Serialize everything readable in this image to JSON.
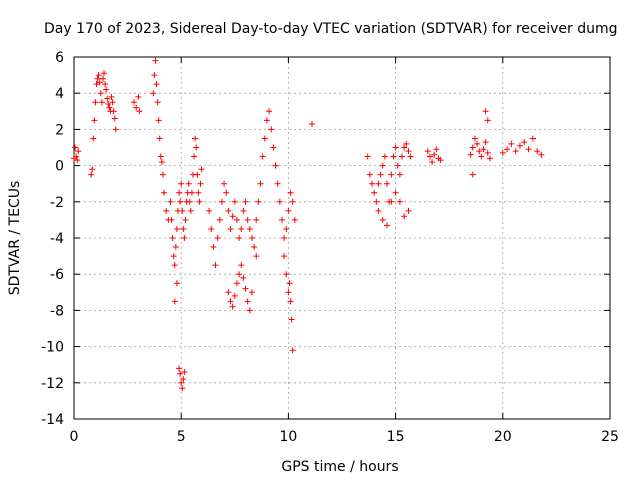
{
  "chart_data": {
    "type": "scatter",
    "title": "Day 170 of 2023, Sidereal Day-to-day VTEC variation (SDTVAR) for receiver dumg",
    "xlabel": "GPS time / hours",
    "ylabel": "SDTVAR / TECUs",
    "xlim": [
      0,
      25
    ],
    "ylim": [
      -14,
      6
    ],
    "xticks": [
      0,
      5,
      10,
      15,
      20,
      25
    ],
    "yticks": [
      -14,
      -12,
      -10,
      -8,
      -6,
      -4,
      -2,
      0,
      2,
      4,
      6
    ],
    "grid": true,
    "marker": "+",
    "color": "#ff0000",
    "series": [
      {
        "name": "SDTVAR",
        "x": [
          0.0,
          0.05,
          0.1,
          0.15,
          0.2,
          0.8,
          0.85,
          0.9,
          0.95,
          1.0,
          1.05,
          1.1,
          1.15,
          1.2,
          1.25,
          1.3,
          1.35,
          1.4,
          1.45,
          1.5,
          1.55,
          1.6,
          1.65,
          1.7,
          1.75,
          1.8,
          1.85,
          1.9,
          1.95,
          2.8,
          2.9,
          3.0,
          3.05,
          3.7,
          3.75,
          3.8,
          3.85,
          3.9,
          3.95,
          4.0,
          4.05,
          4.1,
          4.15,
          4.2,
          4.3,
          4.4,
          4.5,
          4.55,
          4.6,
          4.65,
          4.7,
          4.75,
          4.8,
          4.85,
          4.9,
          4.95,
          5.0,
          5.05,
          5.1,
          5.15,
          5.2,
          5.25,
          5.3,
          5.35,
          5.4,
          5.45,
          5.5,
          5.55,
          5.6,
          5.65,
          5.7,
          5.75,
          5.8,
          5.85,
          5.9,
          5.95,
          4.9,
          4.95,
          5.0,
          5.05,
          5.1,
          5.15,
          4.8,
          4.7,
          6.3,
          6.4,
          6.5,
          6.6,
          6.7,
          6.8,
          6.9,
          7.0,
          7.1,
          7.2,
          7.3,
          7.4,
          7.5,
          7.6,
          7.7,
          7.8,
          7.9,
          8.0,
          8.1,
          8.2,
          8.3,
          8.4,
          8.5,
          7.2,
          7.3,
          7.4,
          7.5,
          7.6,
          7.7,
          7.8,
          7.9,
          8.0,
          8.1,
          8.2,
          8.3,
          8.5,
          8.6,
          8.7,
          8.8,
          8.9,
          9.0,
          9.1,
          9.2,
          9.3,
          9.4,
          9.5,
          9.6,
          9.7,
          9.8,
          9.9,
          10.0,
          10.1,
          10.2,
          10.3,
          9.8,
          9.9,
          10.0,
          10.05,
          10.1,
          10.15,
          10.2,
          11.1,
          13.7,
          13.8,
          13.9,
          14.0,
          14.1,
          14.2,
          14.3,
          14.4,
          14.5,
          14.6,
          14.7,
          14.8,
          14.9,
          15.0,
          15.1,
          15.2,
          15.3,
          15.4,
          15.5,
          15.6,
          15.7,
          14.2,
          14.4,
          14.6,
          14.8,
          15.0,
          15.2,
          15.4,
          15.6,
          16.5,
          16.6,
          16.7,
          16.8,
          16.9,
          17.0,
          17.1,
          18.5,
          18.6,
          18.7,
          18.8,
          18.9,
          19.0,
          19.1,
          19.2,
          19.3,
          19.4,
          20.0,
          20.2,
          20.4,
          20.6,
          20.8,
          21.0,
          21.2,
          21.4,
          21.6,
          21.8,
          19.2,
          19.3,
          18.6
        ],
        "y": [
          0.4,
          1.0,
          0.5,
          0.3,
          0.8,
          -0.5,
          -0.2,
          1.5,
          2.5,
          3.5,
          4.5,
          4.8,
          5.0,
          4.6,
          4.0,
          3.5,
          4.8,
          5.1,
          4.5,
          4.2,
          3.7,
          3.4,
          3.2,
          3.0,
          3.8,
          3.5,
          3.0,
          2.6,
          2.0,
          3.5,
          3.2,
          3.8,
          3.0,
          4.0,
          5.0,
          5.8,
          4.5,
          3.5,
          2.5,
          1.5,
          0.5,
          0.2,
          -0.5,
          -1.5,
          -2.5,
          -3.0,
          -2.0,
          -3.0,
          -4.0,
          -5.0,
          -5.5,
          -4.5,
          -3.5,
          -2.5,
          -1.5,
          -2.0,
          -1.0,
          -2.5,
          -3.5,
          -4.0,
          -3.0,
          -2.0,
          -1.5,
          -1.0,
          -2.0,
          -2.5,
          -1.5,
          -0.5,
          0.5,
          1.5,
          1.0,
          -0.5,
          -1.5,
          -2.0,
          -1.0,
          -0.2,
          -11.2,
          -11.5,
          -12.0,
          -12.3,
          -11.8,
          -11.4,
          -6.5,
          -7.5,
          -2.5,
          -3.5,
          -4.5,
          -5.5,
          -4.0,
          -3.0,
          -2.0,
          -1.0,
          -1.5,
          -2.5,
          -3.5,
          -2.8,
          -2.0,
          -3.0,
          -4.0,
          -3.5,
          -2.5,
          -2.0,
          -3.0,
          -3.5,
          -4.0,
          -4.5,
          -5.0,
          -7.0,
          -7.5,
          -7.8,
          -7.2,
          -6.5,
          -6.0,
          -5.5,
          -6.2,
          -6.8,
          -7.5,
          -8.0,
          -7.0,
          -3.0,
          -2.0,
          -1.0,
          0.5,
          1.5,
          2.5,
          3.0,
          2.0,
          1.0,
          0.0,
          -1.0,
          -2.0,
          -3.0,
          -4.0,
          -3.5,
          -2.5,
          -1.5,
          -2.0,
          -3.0,
          -5.0,
          -6.0,
          -7.0,
          -6.5,
          -7.5,
          -8.5,
          -10.2,
          2.3,
          0.5,
          -0.5,
          -1.0,
          -1.5,
          -2.0,
          -1.0,
          -0.5,
          0.0,
          0.5,
          -1.0,
          -2.0,
          -0.5,
          0.5,
          1.0,
          0.0,
          -0.5,
          0.5,
          1.0,
          1.2,
          0.8,
          0.5,
          -2.5,
          -3.0,
          -3.3,
          -2.0,
          -1.5,
          -2.0,
          -2.8,
          -2.5,
          0.8,
          0.5,
          0.2,
          0.6,
          0.9,
          0.4,
          0.3,
          0.6,
          1.0,
          1.5,
          1.2,
          0.8,
          0.5,
          0.9,
          1.3,
          0.7,
          0.4,
          0.7,
          0.9,
          1.2,
          0.8,
          1.1,
          1.3,
          0.9,
          1.5,
          0.8,
          0.6,
          3.0,
          2.5,
          -0.5
        ]
      }
    ]
  }
}
